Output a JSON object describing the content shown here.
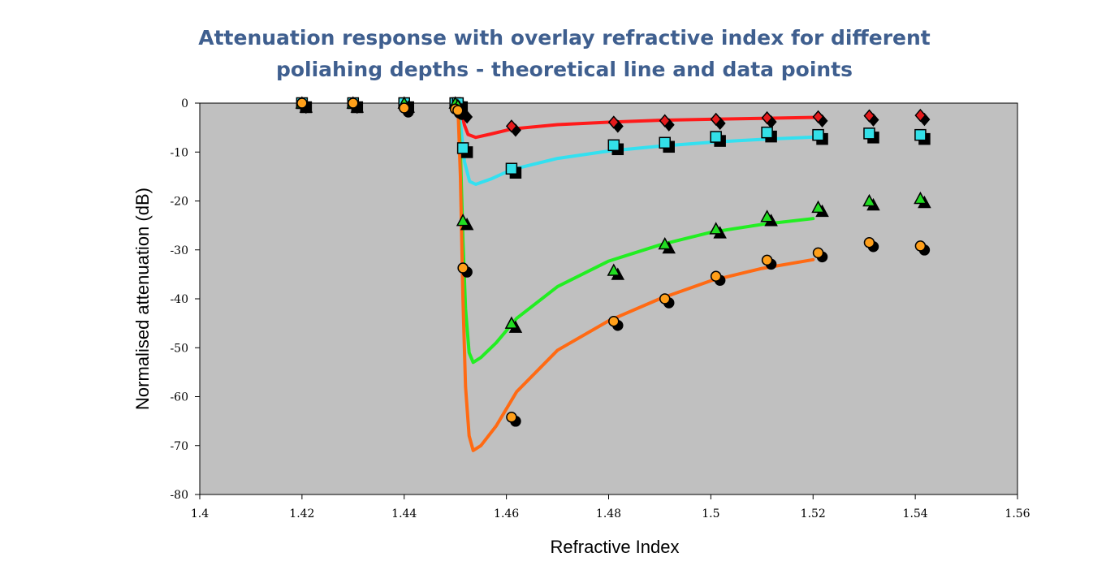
{
  "title_lines": [
    "Attenuation response with overlay refractive index for different",
    "poliahing depths - theoretical line and data points"
  ],
  "chart_data": {
    "type": "scatter",
    "title": "Attenuation response with overlay refractive index for different poliahing depths - theoretical line and data points",
    "xlabel": "Refractive Index",
    "ylabel": "Normalised attenuation (dB)",
    "xlim": [
      1.4,
      1.56
    ],
    "ylim": [
      -80,
      0
    ],
    "x_ticks": [
      "1.4",
      "1.42",
      "1.44",
      "1.46",
      "1.48",
      "1.5",
      "1.52",
      "1.54",
      "1.56"
    ],
    "y_ticks": [
      "0",
      "-10",
      "-20",
      "-30",
      "-40",
      "-50",
      "-60",
      "-70",
      "-80"
    ],
    "grid": false,
    "legend": "none",
    "plot_background": "#c0c0c0",
    "series": [
      {
        "marker": "diamond",
        "color": "#e41a1c",
        "points": [
          [
            1.42,
            0
          ],
          [
            1.43,
            0
          ],
          [
            1.44,
            0
          ],
          [
            1.45,
            0
          ],
          [
            1.4505,
            -1
          ],
          [
            1.4515,
            -2
          ],
          [
            1.461,
            -4.7
          ],
          [
            1.481,
            -3.9
          ],
          [
            1.491,
            -3.6
          ],
          [
            1.501,
            -3.3
          ],
          [
            1.511,
            -3
          ],
          [
            1.521,
            -2.8
          ],
          [
            1.531,
            -2.6
          ],
          [
            1.541,
            -2.5
          ]
        ]
      },
      {
        "marker": "square",
        "color": "#33e0e8",
        "points": [
          [
            1.42,
            0
          ],
          [
            1.43,
            0
          ],
          [
            1.44,
            0
          ],
          [
            1.45,
            0
          ],
          [
            1.4505,
            0
          ],
          [
            1.4515,
            -9.2
          ],
          [
            1.461,
            -13.4
          ],
          [
            1.481,
            -8.6
          ],
          [
            1.491,
            -8.1
          ],
          [
            1.501,
            -6.9
          ],
          [
            1.511,
            -6
          ],
          [
            1.521,
            -6.5
          ],
          [
            1.531,
            -6.2
          ],
          [
            1.541,
            -6.5
          ]
        ]
      },
      {
        "marker": "triangle",
        "color": "#22dd22",
        "points": [
          [
            1.42,
            0
          ],
          [
            1.43,
            0
          ],
          [
            1.44,
            0
          ],
          [
            1.45,
            0
          ],
          [
            1.4505,
            -0.5
          ],
          [
            1.4515,
            -24
          ],
          [
            1.461,
            -45
          ],
          [
            1.481,
            -34.2
          ],
          [
            1.491,
            -28.8
          ],
          [
            1.501,
            -25.7
          ],
          [
            1.511,
            -23.2
          ],
          [
            1.521,
            -21.3
          ],
          [
            1.531,
            -20
          ],
          [
            1.541,
            -19.5
          ]
        ]
      },
      {
        "marker": "circle",
        "color": "#ff9f1a",
        "points": [
          [
            1.42,
            0
          ],
          [
            1.43,
            0
          ],
          [
            1.44,
            -1
          ],
          [
            1.45,
            -1.2
          ],
          [
            1.4505,
            -1.5
          ],
          [
            1.4515,
            -33.7
          ],
          [
            1.461,
            -64.2
          ],
          [
            1.481,
            -44.6
          ],
          [
            1.491,
            -40
          ],
          [
            1.501,
            -35.4
          ],
          [
            1.511,
            -32.1
          ],
          [
            1.521,
            -30.6
          ],
          [
            1.531,
            -28.5
          ],
          [
            1.541,
            -29.2
          ]
        ]
      }
    ],
    "theory_lines": [
      {
        "color": "#ff1a1a",
        "points": [
          [
            1.4505,
            0
          ],
          [
            1.451,
            -1
          ],
          [
            1.4518,
            -4.5
          ],
          [
            1.4525,
            -6.4
          ],
          [
            1.454,
            -7
          ],
          [
            1.457,
            -6.3
          ],
          [
            1.461,
            -5.3
          ],
          [
            1.47,
            -4.4
          ],
          [
            1.48,
            -3.9
          ],
          [
            1.49,
            -3.5
          ],
          [
            1.5,
            -3.3
          ],
          [
            1.51,
            -3.1
          ],
          [
            1.521,
            -2.9
          ]
        ]
      },
      {
        "color": "#33e0f0",
        "points": [
          [
            1.4505,
            0
          ],
          [
            1.451,
            -4
          ],
          [
            1.4518,
            -12
          ],
          [
            1.4528,
            -16
          ],
          [
            1.454,
            -16.6
          ],
          [
            1.457,
            -15.5
          ],
          [
            1.461,
            -13.6
          ],
          [
            1.47,
            -11.3
          ],
          [
            1.48,
            -9.8
          ],
          [
            1.49,
            -8.8
          ],
          [
            1.5,
            -8
          ],
          [
            1.51,
            -7.4
          ],
          [
            1.521,
            -6.9
          ]
        ]
      },
      {
        "color": "#22ee22",
        "points": [
          [
            1.4505,
            0
          ],
          [
            1.451,
            -10
          ],
          [
            1.4515,
            -28
          ],
          [
            1.452,
            -42
          ],
          [
            1.4527,
            -51
          ],
          [
            1.4535,
            -53
          ],
          [
            1.455,
            -52
          ],
          [
            1.458,
            -49
          ],
          [
            1.462,
            -44
          ],
          [
            1.47,
            -37.5
          ],
          [
            1.48,
            -32.3
          ],
          [
            1.49,
            -29
          ],
          [
            1.5,
            -26.4
          ],
          [
            1.51,
            -24.8
          ],
          [
            1.52,
            -23.6
          ]
        ]
      },
      {
        "color": "#ff6a13",
        "points": [
          [
            1.4505,
            0
          ],
          [
            1.451,
            -15
          ],
          [
            1.4515,
            -40
          ],
          [
            1.452,
            -58
          ],
          [
            1.4527,
            -68
          ],
          [
            1.4535,
            -71
          ],
          [
            1.455,
            -70
          ],
          [
            1.458,
            -66
          ],
          [
            1.462,
            -59
          ],
          [
            1.47,
            -50.5
          ],
          [
            1.48,
            -44.5
          ],
          [
            1.49,
            -40
          ],
          [
            1.5,
            -36.3
          ],
          [
            1.51,
            -33.8
          ],
          [
            1.52,
            -32
          ]
        ]
      }
    ]
  }
}
